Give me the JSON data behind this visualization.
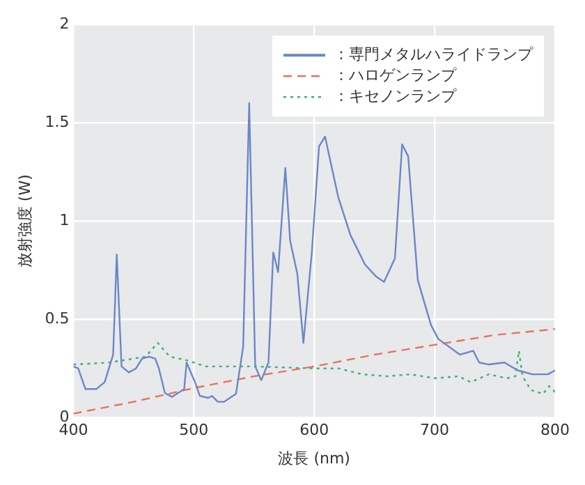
{
  "chart_data": {
    "type": "line",
    "xlabel": "波長 (nm)",
    "ylabel": "放射強度 (W)",
    "xlim": [
      400,
      800
    ],
    "xticks": [
      400,
      500,
      600,
      700,
      800
    ],
    "ylim": [
      0,
      2
    ],
    "yticks": [
      0,
      0.5,
      1,
      1.5,
      2
    ],
    "grid": true,
    "legend": "top right",
    "marker": "none",
    "series": [
      {
        "name": "：専門メタルハライドランプ",
        "color": "#6a87c8",
        "line_style": "solid",
        "x": [
          400,
          404,
          410,
          419,
          426,
          433,
          436,
          440,
          446,
          452,
          457,
          463,
          468,
          471,
          476,
          482,
          492,
          494,
          501,
          505,
          512,
          515,
          520,
          525,
          535,
          541,
          546,
          551,
          556,
          562,
          566,
          570,
          576,
          580,
          586,
          591,
          598,
          604,
          609,
          620,
          630,
          642,
          651,
          658,
          667,
          673,
          678,
          686,
          697,
          703,
          721,
          732,
          737,
          745,
          758,
          769,
          781,
          794,
          800
        ],
        "values": [
          0.26,
          0.25,
          0.145,
          0.145,
          0.18,
          0.32,
          0.83,
          0.26,
          0.23,
          0.25,
          0.3,
          0.31,
          0.3,
          0.25,
          0.125,
          0.105,
          0.145,
          0.28,
          0.18,
          0.11,
          0.1,
          0.11,
          0.08,
          0.08,
          0.12,
          0.36,
          1.6,
          0.26,
          0.19,
          0.28,
          0.84,
          0.74,
          1.27,
          0.9,
          0.73,
          0.38,
          0.84,
          1.38,
          1.43,
          1.12,
          0.93,
          0.78,
          0.72,
          0.69,
          0.81,
          1.39,
          1.33,
          0.7,
          0.47,
          0.4,
          0.32,
          0.34,
          0.28,
          0.27,
          0.28,
          0.24,
          0.22,
          0.22,
          0.24
        ]
      },
      {
        "name": "：ハロゲンランプ",
        "color": "#e8735a",
        "line_style": "dashed",
        "x": [
          400,
          450,
          500,
          550,
          600,
          650,
          700,
          750,
          800
        ],
        "values": [
          0.02,
          0.08,
          0.15,
          0.21,
          0.26,
          0.32,
          0.37,
          0.42,
          0.45
        ]
      },
      {
        "name": "：キセノンランプ",
        "color": "#3bb07e",
        "line_style": "dotted",
        "x": [
          400,
          430,
          460,
          470,
          480,
          495,
          510,
          550,
          600,
          620,
          640,
          660,
          680,
          690,
          700,
          720,
          730,
          745,
          760,
          767,
          770,
          773,
          780,
          790,
          795,
          800
        ],
        "values": [
          0.27,
          0.28,
          0.31,
          0.38,
          0.31,
          0.29,
          0.26,
          0.26,
          0.25,
          0.25,
          0.22,
          0.21,
          0.22,
          0.21,
          0.2,
          0.21,
          0.18,
          0.22,
          0.2,
          0.21,
          0.34,
          0.21,
          0.14,
          0.12,
          0.16,
          0.13
        ]
      }
    ]
  }
}
